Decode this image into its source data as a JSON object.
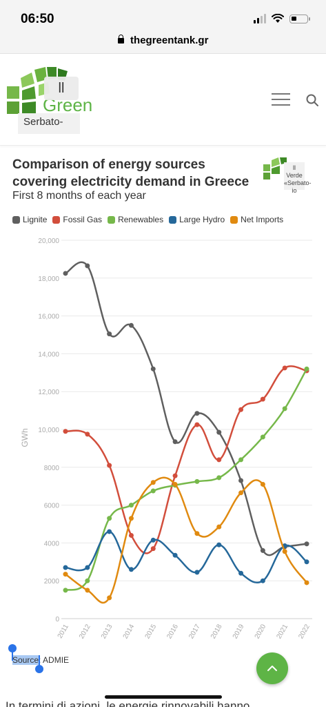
{
  "status_bar": {
    "time": "06:50"
  },
  "browser": {
    "url": "thegreentank.gr"
  },
  "header": {
    "logo_text": "Green",
    "logo_overlay": "ll",
    "logo_caption": "Serbato-\nio"
  },
  "chart_logo": {
    "overlay": "ll\nVerde\n«Serbato-\nio"
  },
  "colors": {
    "Lignite": "#5f5f5f",
    "Fossil Gas": "#d24e3c",
    "Renewables": "#76b84a",
    "Large Hydro": "#25689a",
    "Net Imports": "#e08a10",
    "accent": "#5eb446"
  },
  "chart_data": {
    "type": "line",
    "title": "Comparison of energy sources covering electricity demand in Greece",
    "subtitle": "First 8 months of each year",
    "ylabel": "GWh",
    "xlabel": "",
    "ylim": [
      0,
      20000
    ],
    "yticks": [
      "0",
      "2000",
      "4000",
      "6000",
      "8000",
      "10,000",
      "12,000",
      "14,000",
      "16,000",
      "18,000",
      "20,000"
    ],
    "x": [
      "2011",
      "2012",
      "2013",
      "2014",
      "2015",
      "2016",
      "2017",
      "2018",
      "2019",
      "2020",
      "2021",
      "2022"
    ],
    "grid": true,
    "legend_position": "top-left",
    "series": [
      {
        "name": "Lignite",
        "values": [
          18250,
          18650,
          15050,
          15500,
          13200,
          9350,
          10850,
          9850,
          7300,
          3600,
          3800,
          3950
        ]
      },
      {
        "name": "Fossil Gas",
        "values": [
          9900,
          9750,
          8100,
          4400,
          3700,
          7550,
          10250,
          8400,
          11050,
          11600,
          13250,
          13100
        ]
      },
      {
        "name": "Renewables",
        "values": [
          1500,
          2000,
          5300,
          6000,
          6750,
          7050,
          7250,
          7450,
          8400,
          9600,
          11100,
          13200
        ]
      },
      {
        "name": "Large Hydro",
        "values": [
          2700,
          2700,
          4600,
          2600,
          4150,
          3350,
          2450,
          3900,
          2400,
          2000,
          3850,
          3000
        ]
      },
      {
        "name": "Net Imports",
        "values": [
          2350,
          1500,
          1100,
          5300,
          7200,
          7100,
          4500,
          4850,
          6650,
          7100,
          3550,
          1900
        ]
      }
    ]
  },
  "source": {
    "label": "Source",
    "value": ": ADMIE"
  },
  "body_text": "In termini di azioni, le energie rinnovabili hanno"
}
